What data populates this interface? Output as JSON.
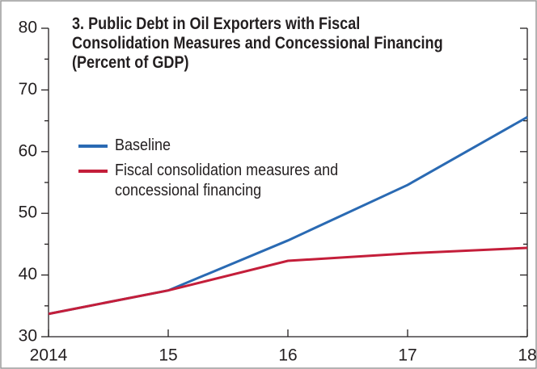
{
  "chart_data": {
    "type": "line",
    "title": "3. Public Debt in Oil Exporters with Fiscal Consolidation Measures and Concessional Financing",
    "subtitle": "(Percent of GDP)",
    "categories": [
      "2014",
      "15",
      "16",
      "17",
      "18"
    ],
    "series": [
      {
        "name": "Baseline",
        "color": "#2a6ab3",
        "values": [
          33.7,
          37.5,
          45.6,
          54.6,
          65.6
        ]
      },
      {
        "name": "Fiscal consolidation measures and concessional financing",
        "color": "#c41e3a",
        "values": [
          33.7,
          37.5,
          42.3,
          43.5,
          44.4
        ]
      }
    ],
    "ylim": [
      30,
      80
    ],
    "yticks": [
      30,
      40,
      50,
      60,
      70,
      80
    ],
    "minor_yticks": [
      35,
      45,
      55,
      65,
      75
    ],
    "grid": false
  }
}
